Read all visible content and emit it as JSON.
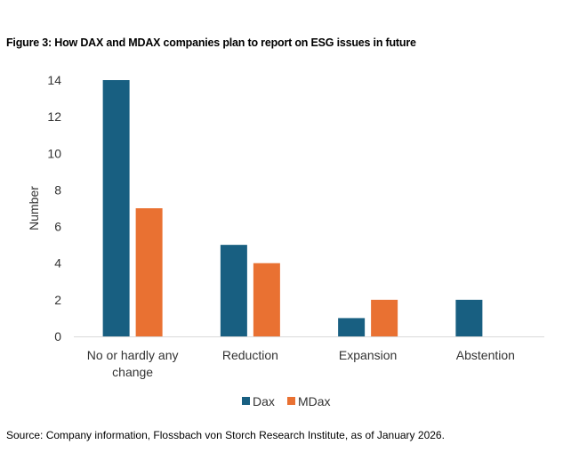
{
  "title": "Figure 3: How DAX and MDAX companies plan to report on ESG issues in future",
  "source": "Source: Company information, Flossbach von Storch Research Institute, as of January 2026.",
  "chart_data": {
    "type": "bar",
    "categories": [
      "No or hardly any change",
      "Reduction",
      "Expansion",
      "Abstention"
    ],
    "category_lines": [
      [
        "No or hardly any",
        "change"
      ],
      [
        "Reduction"
      ],
      [
        "Expansion"
      ],
      [
        "Abstention"
      ]
    ],
    "series": [
      {
        "name": "Dax",
        "values": [
          14,
          5,
          1,
          2
        ],
        "color": "#185F81"
      },
      {
        "name": "MDax",
        "values": [
          7,
          4,
          2,
          0
        ],
        "color": "#E97132"
      }
    ],
    "ylabel": "Number",
    "xlabel": "",
    "ylim": [
      0,
      14
    ],
    "yticks": [
      "0",
      "2",
      "4",
      "6",
      "8",
      "10",
      "12",
      "14"
    ],
    "grid": false,
    "legend": "bottom"
  }
}
